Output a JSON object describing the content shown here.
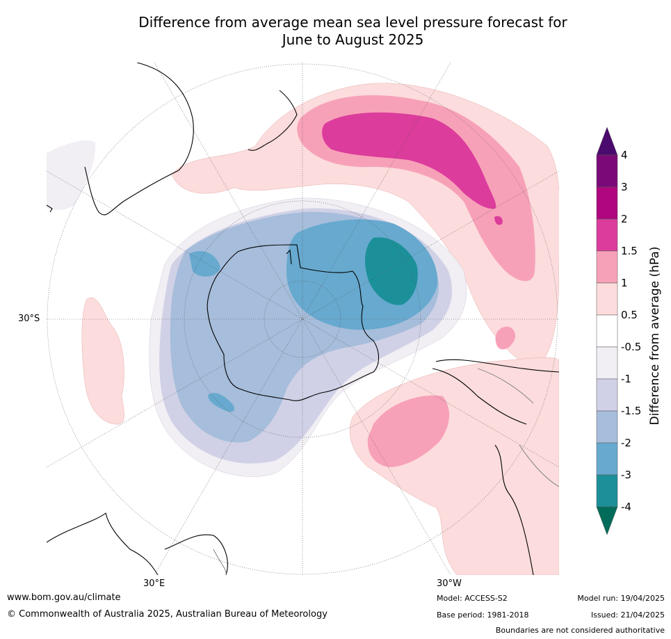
{
  "title_line1": "Difference from average mean sea level pressure forecast for",
  "title_line2": "June to August 2025",
  "map_labels": {
    "lat_30s": "30°S",
    "lon_30e": "30°E",
    "lon_30w": "30°W"
  },
  "colorbar": {
    "title": "Difference from average (hPa)",
    "ticks": [
      "4",
      "3",
      "2",
      "1.5",
      "1",
      "0.5",
      "-0.5",
      "-1",
      "-1.5",
      "-2",
      "-3",
      "-4"
    ],
    "colors": {
      "above_4": "#4b0a6e",
      "3_to_4": "#7b0a78",
      "2_to_3": "#b0077f",
      "1.5_to_2": "#dc3c9c",
      "1_to_1.5": "#f7a1b8",
      "0.5_to_1": "#fcdcdc",
      "-0.5_to_0.5": "#ffffff",
      "-1_to_-0.5": "#f1eef4",
      "-1.5_to_-1": "#d0d1e6",
      "-2_to_-1.5": "#a6bddb",
      "-3_to_-2": "#67a9cf",
      "-4_to_-3": "#1c9099",
      "below_-4": "#016c59"
    }
  },
  "footer": {
    "website": "www.bom.gov.au/climate",
    "copyright": "© Commonwealth of Australia 2025, Australian Bureau of Meteorology",
    "model": "Model: ACCESS-S2",
    "base_period": "Base period: 1981-2018",
    "model_run": "Model run: 19/04/2025",
    "issued": "Issued: 21/04/2025",
    "disclaimer": "Boundaries are not considered authoritative"
  }
}
